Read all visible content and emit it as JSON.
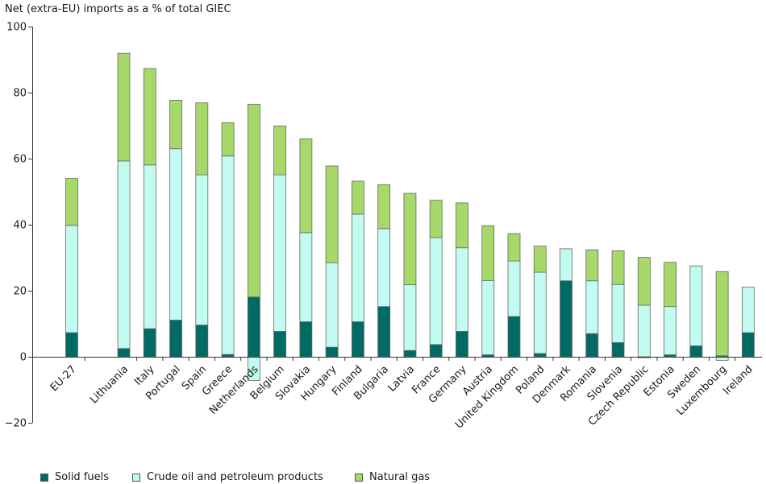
{
  "chart_data": {
    "type": "bar",
    "stacked": true,
    "title": "",
    "ylabel": "Net (extra-EU) imports as a % of total GIEC",
    "xlabel": "",
    "ylim": [
      -20,
      100
    ],
    "yticks": [
      -20,
      0,
      20,
      40,
      60,
      80,
      100
    ],
    "grid": false,
    "legend_position": "bottom",
    "categories": [
      "EU-27",
      "",
      "Lithuania",
      "Italy",
      "Portugal",
      "Spain",
      "Greece",
      "Netherlands",
      "Belgium",
      "Slovakia",
      "Hungary",
      "Finland",
      "Bulgaria",
      "Latvia",
      "France",
      "Germany",
      "Austria",
      "United Kingdom",
      "Poland",
      "Denmark",
      "Romania",
      "Slovenia",
      "Czech Republic",
      "Estonia",
      "Sweden",
      "Luxembourg",
      "Ireland"
    ],
    "series": [
      {
        "name": "Solid fuels",
        "color": "#006b64",
        "values": [
          7.3,
          null,
          2.5,
          8.5,
          11.1,
          9.6,
          0.7,
          18.1,
          7.7,
          10.6,
          2.9,
          10.6,
          15.2,
          1.9,
          3.7,
          7.7,
          0.6,
          12.2,
          1.0,
          23.0,
          7.0,
          4.3,
          -0.3,
          0.6,
          3.3,
          0.3,
          7.3
        ]
      },
      {
        "name": "Crude oil and petroleum products",
        "color": "#c2fbf0",
        "values": [
          32.5,
          null,
          56.8,
          49.6,
          51.9,
          45.5,
          60.1,
          -7.2,
          47.4,
          27.0,
          25.6,
          32.6,
          23.6,
          19.9,
          32.4,
          25.3,
          22.5,
          16.8,
          24.6,
          9.7,
          16.0,
          17.6,
          15.6,
          14.6,
          24.2,
          -1.1,
          13.8
        ]
      },
      {
        "name": "Natural gas",
        "color": "#a6d96a",
        "values": [
          14.2,
          null,
          32.6,
          29.2,
          14.7,
          21.8,
          10.1,
          58.4,
          14.8,
          28.4,
          29.3,
          10.0,
          13.3,
          27.7,
          11.3,
          13.6,
          16.6,
          8.3,
          7.9,
          0.0,
          9.4,
          10.2,
          14.5,
          13.4,
          0.0,
          25.5,
          0.0
        ]
      }
    ]
  }
}
